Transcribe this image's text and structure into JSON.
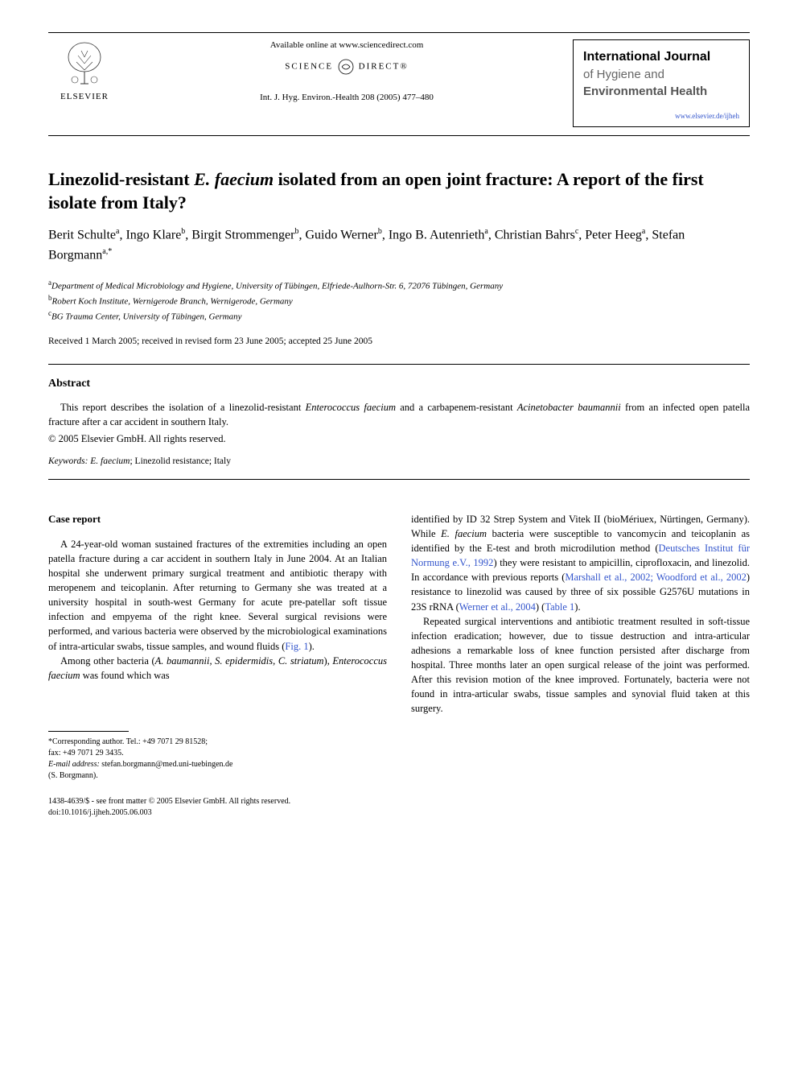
{
  "header": {
    "publisher_label": "ELSEVIER",
    "available_text": "Available online at www.sciencedirect.com",
    "science_direct": "SCIENCE",
    "science_direct2": "DIRECT",
    "journal_ref": "Int. J. Hyg. Environ.-Health 208 (2005) 477–480",
    "journal_title_1": "International Journal",
    "journal_title_2": "of Hygiene and",
    "journal_title_3": "Environmental Health",
    "journal_link": "www.elsevier.de/ijheh"
  },
  "article": {
    "title_part1": "Linezolid-resistant ",
    "title_italic": "E. faecium",
    "title_part2": " isolated from an open joint fracture: A report of the first isolate from Italy?",
    "authors_html": "Berit Schulte<sup>a</sup>, Ingo Klare<sup>b</sup>, Birgit Strommenger<sup>b</sup>, Guido Werner<sup>b</sup>, Ingo B. Autenrieth<sup>a</sup>, Christian Bahrs<sup>c</sup>, Peter Heeg<sup>a</sup>, Stefan Borgmann<sup>a,*</sup>",
    "affiliations": [
      {
        "sup": "a",
        "text": "Department of Medical Microbiology and Hygiene, University of Tübingen, Elfriede-Aulhorn-Str. 6, 72076 Tübingen, Germany"
      },
      {
        "sup": "b",
        "text": "Robert Koch Institute, Wernigerode Branch, Wernigerode, Germany"
      },
      {
        "sup": "c",
        "text": "BG Trauma Center, University of Tübingen, Germany"
      }
    ],
    "dates": "Received 1 March 2005; received in revised form 23 June 2005; accepted 25 June 2005"
  },
  "abstract": {
    "heading": "Abstract",
    "text_pre": "This report describes the isolation of a linezolid-resistant ",
    "italic1": "Enterococcus faecium",
    "text_mid": " and a carbapenem-resistant ",
    "italic2": "Acinetobacter baumannii",
    "text_post": " from an infected open patella fracture after a car accident in southern Italy.",
    "copyright": "© 2005 Elsevier GmbH. All rights reserved.",
    "keywords_label": "Keywords:",
    "keywords_italic": "E. faecium",
    "keywords_rest": "; Linezolid resistance; Italy"
  },
  "body": {
    "section_heading": "Case report",
    "col1_para1": "A 24-year-old woman sustained fractures of the extremities including an open patella fracture during a car accident in southern Italy in June 2004. At an Italian hospital she underwent primary surgical treatment and antibiotic therapy with meropenem and teicoplanin. After returning to Germany she was treated at a university hospital in south-west Germany for acute pre-patellar soft tissue infection and empyema of the right knee. Several surgical revisions were performed, and various bacteria were observed by the microbiological examinations of intra-articular swabs, tissue samples, and wound fluids (",
    "col1_para1_cite": "Fig. 1",
    "col1_para1_end": ").",
    "col1_para2_pre": "Among other bacteria (",
    "col1_para2_italic1": "A. baumannii, S. epidermidis, C. striatum",
    "col1_para2_mid": "), ",
    "col1_para2_italic2": "Enterococcus faecium",
    "col1_para2_post": " was found which was",
    "col2_para1_pre": "identified by ID 32 Strep System and Vitek II (bioMériuex, Nürtingen, Germany). While ",
    "col2_para1_italic": "E. faecium",
    "col2_para1_mid": " bacteria were susceptible to vancomycin and teicoplanin as identified by the E-test and broth microdilution method (",
    "col2_para1_cite1": "Deutsches Institut für Normung e.V., 1992",
    "col2_para1_mid2": ") they were resistant to ampicillin, ciprofloxacin, and linezolid. In accordance with previous reports (",
    "col2_para1_cite2": "Marshall et al., 2002; Woodford et al., 2002",
    "col2_para1_mid3": ") resistance to linezolid was caused by three of six possible G2576U mutations in 23S rRNA (",
    "col2_para1_cite3": "Werner et al., 2004",
    "col2_para1_mid4": ") (",
    "col2_para1_cite4": "Table 1",
    "col2_para1_end": ").",
    "col2_para2": "Repeated surgical interventions and antibiotic treatment resulted in soft-tissue infection eradication; however, due to tissue destruction and intra-articular adhesions a remarkable loss of knee function persisted after discharge from hospital. Three months later an open surgical release of the joint was performed. After this revision motion of the knee improved. Fortunately, bacteria were not found in intra-articular swabs, tissue samples and synovial fluid taken at this surgery."
  },
  "footnote": {
    "corresponding": "*Corresponding author. Tel.: +49 7071 29 81528;",
    "fax": "fax: +49 7071 29 3435.",
    "email_label": "E-mail address:",
    "email": "stefan.borgmann@med.uni-tuebingen.de",
    "email_name": "(S. Borgmann)."
  },
  "bottom": {
    "line1": "1438-4639/$ - see front matter © 2005 Elsevier GmbH. All rights reserved.",
    "line2": "doi:10.1016/j.ijheh.2005.06.003"
  },
  "colors": {
    "link": "#3355cc",
    "text": "#000000",
    "gray": "#666666"
  }
}
